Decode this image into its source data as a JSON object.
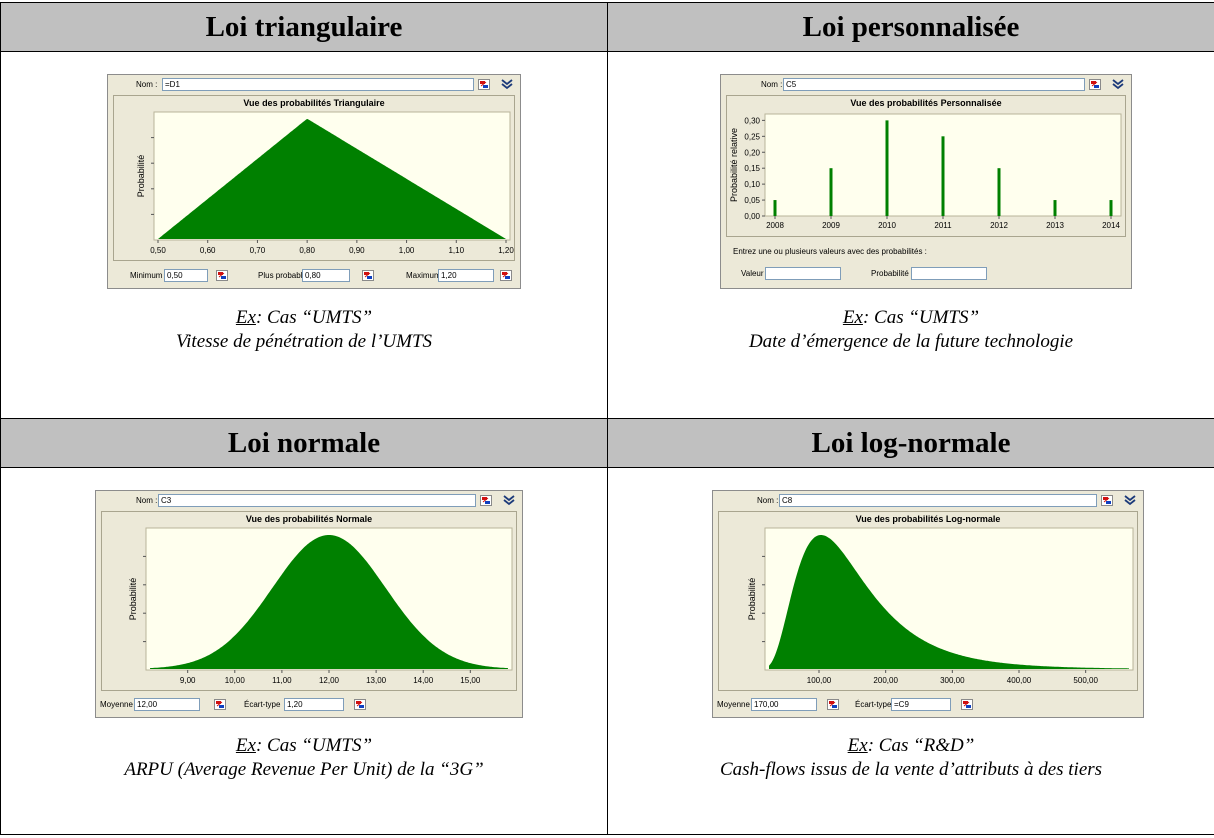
{
  "sections": [
    {
      "header": "Loi triangulaire",
      "widget": {
        "nom_label": "Nom :",
        "nom_value": "=D1",
        "chart_title": "Vue des probabilités Triangulaire",
        "ylabel": "Probabilité",
        "ticks": [
          "0,50",
          "0,60",
          "0,70",
          "0,80",
          "0,90",
          "1,00",
          "1,10",
          "1,20"
        ],
        "fields": [
          {
            "label": "Minimum",
            "value": "0,50"
          },
          {
            "label": "Plus probable",
            "value": "0,80"
          },
          {
            "label": "Maximum",
            "value": "1,20"
          }
        ]
      },
      "caption_ex": "Ex",
      "caption_case": ": Cas “UMTS”",
      "caption_desc": "Vitesse de pénétration de l’UMTS"
    },
    {
      "header": "Loi personnalisée",
      "widget": {
        "nom_label": "Nom :",
        "nom_value": "C5",
        "chart_title": "Vue des probabilités Personnalisée",
        "ylabel": "Probabilité relative",
        "yticks": [
          "0,00",
          "0,05",
          "0,10",
          "0,15",
          "0,20",
          "0,25",
          "0,30"
        ],
        "xticks": [
          "2008",
          "2009",
          "2010",
          "2011",
          "2012",
          "2013",
          "2014"
        ],
        "note": "Entrez une ou plusieurs valeurs avec des probabilités :",
        "fields": [
          {
            "label": "Valeur",
            "value": ""
          },
          {
            "label": "Probabilité",
            "value": ""
          }
        ]
      },
      "caption_ex": "Ex",
      "caption_case": ": Cas “UMTS”",
      "caption_desc": "Date d’émergence de la future technologie"
    },
    {
      "header": "Loi normale",
      "widget": {
        "nom_label": "Nom :",
        "nom_value": "C3",
        "chart_title": "Vue des probabilités Normale",
        "ylabel": "Probabilité",
        "ticks": [
          "9,00",
          "10,00",
          "11,00",
          "12,00",
          "13,00",
          "14,00",
          "15,00"
        ],
        "fields": [
          {
            "label": "Moyenne",
            "value": "12,00"
          },
          {
            "label": "Écart-type",
            "value": "1,20"
          }
        ]
      },
      "caption_ex": "Ex",
      "caption_case": ": Cas “UMTS”",
      "caption_desc": "ARPU (Average Revenue Per Unit) de la “3G”"
    },
    {
      "header": "Loi log-normale",
      "widget": {
        "nom_label": "Nom :",
        "nom_value": "C8",
        "chart_title": "Vue des probabilités Log-normale",
        "ylabel": "Probabilité",
        "ticks": [
          "100,00",
          "200,00",
          "300,00",
          "400,00",
          "500,00"
        ],
        "fields": [
          {
            "label": "Moyenne",
            "value": "170,00"
          },
          {
            "label": "Écart-type",
            "value": "=C9"
          }
        ]
      },
      "caption_ex": "Ex",
      "caption_case": ": Cas “R&D”",
      "caption_desc": "Cash-flows issus de la vente d’attributs à des tiers"
    }
  ],
  "colors": {
    "fill": "#008000",
    "plot_bg": "#ffffee",
    "panel_bg": "#ece9d8",
    "header_bg": "#c0c0c0"
  },
  "chart_data": [
    {
      "type": "area",
      "title": "Vue des probabilités Triangulaire",
      "ylabel": "Probabilité",
      "distribution": "triangular",
      "minimum": 0.5,
      "mode": 0.8,
      "maximum": 1.2,
      "xlim": [
        0.5,
        1.2
      ]
    },
    {
      "type": "bar",
      "title": "Vue des probabilités Personnalisée",
      "ylabel": "Probabilité relative",
      "categories": [
        "2008",
        "2009",
        "2010",
        "2011",
        "2012",
        "2013",
        "2014"
      ],
      "values": [
        0.05,
        0.15,
        0.3,
        0.25,
        0.15,
        0.05,
        0.05
      ],
      "ylim": [
        0,
        0.32
      ]
    },
    {
      "type": "area",
      "title": "Vue des probabilités Normale",
      "ylabel": "Probabilité",
      "distribution": "normal",
      "mean": 12.0,
      "sd": 1.2,
      "xlim": [
        8.2,
        15.8
      ]
    },
    {
      "type": "area",
      "title": "Vue des probabilités Log-normale",
      "ylabel": "Probabilité",
      "distribution": "lognormal",
      "mean": 170.0,
      "xlim": [
        25,
        565
      ]
    }
  ]
}
